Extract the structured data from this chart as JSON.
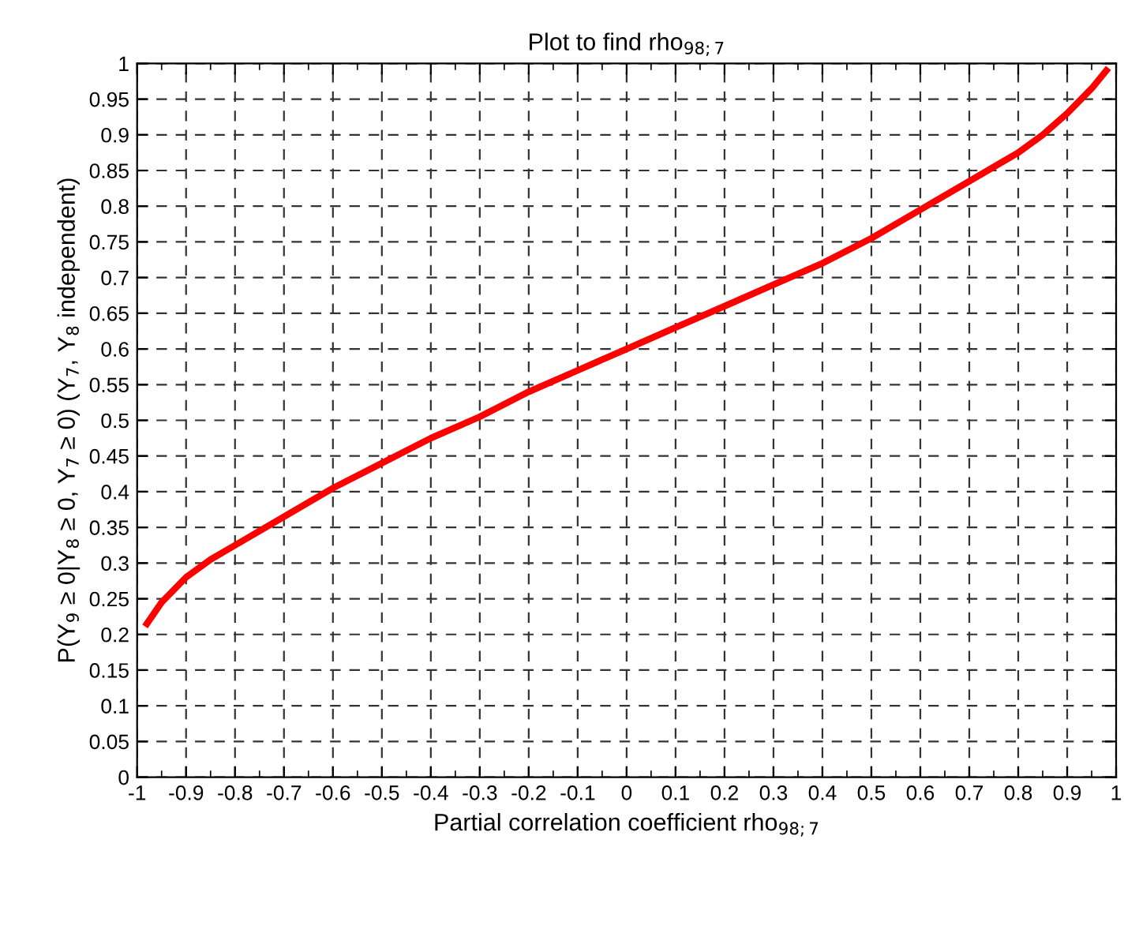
{
  "chart_data": {
    "type": "line",
    "title": "Plot to find rho$_{98;7}$",
    "xlabel": "Partial correlation coefficient rho$_{98;7}$",
    "ylabel": "P(Y$_{9}$ ≥ 0|Y$_{8}$ ≥ 0, Y$_{7}$ ≥ 0) (Y$_{7}$, Y$_{8}$ independent)",
    "x": [
      -0.98,
      -0.95,
      -0.9,
      -0.85,
      -0.8,
      -0.7,
      -0.6,
      -0.5,
      -0.4,
      -0.3,
      -0.2,
      -0.1,
      0,
      0.1,
      0.2,
      0.3,
      0.4,
      0.5,
      0.6,
      0.7,
      0.8,
      0.85,
      0.9,
      0.95,
      0.98
    ],
    "series": [
      {
        "color": "#ff0000",
        "values": [
          0.215,
          0.245,
          0.28,
          0.305,
          0.325,
          0.365,
          0.405,
          0.44,
          0.475,
          0.505,
          0.54,
          0.57,
          0.6,
          0.63,
          0.66,
          0.69,
          0.72,
          0.755,
          0.795,
          0.835,
          0.875,
          0.9,
          0.93,
          0.965,
          0.99
        ]
      }
    ],
    "xlim": [
      -1,
      1
    ],
    "ylim": [
      0,
      1
    ],
    "xticks": [
      -1,
      -0.9,
      -0.8,
      -0.7,
      -0.6,
      -0.5,
      -0.4,
      -0.3,
      -0.2,
      -0.1,
      0,
      0.1,
      0.2,
      0.3,
      0.4,
      0.5,
      0.6,
      0.7,
      0.8,
      0.9,
      1
    ],
    "yticks": [
      0,
      0.05,
      0.1,
      0.15,
      0.2,
      0.25,
      0.3,
      0.35,
      0.4,
      0.45,
      0.5,
      0.55,
      0.6,
      0.65,
      0.7,
      0.75,
      0.8,
      0.85,
      0.9,
      0.95,
      1
    ],
    "grid": true,
    "marker": "none",
    "line_style": "solid"
  }
}
